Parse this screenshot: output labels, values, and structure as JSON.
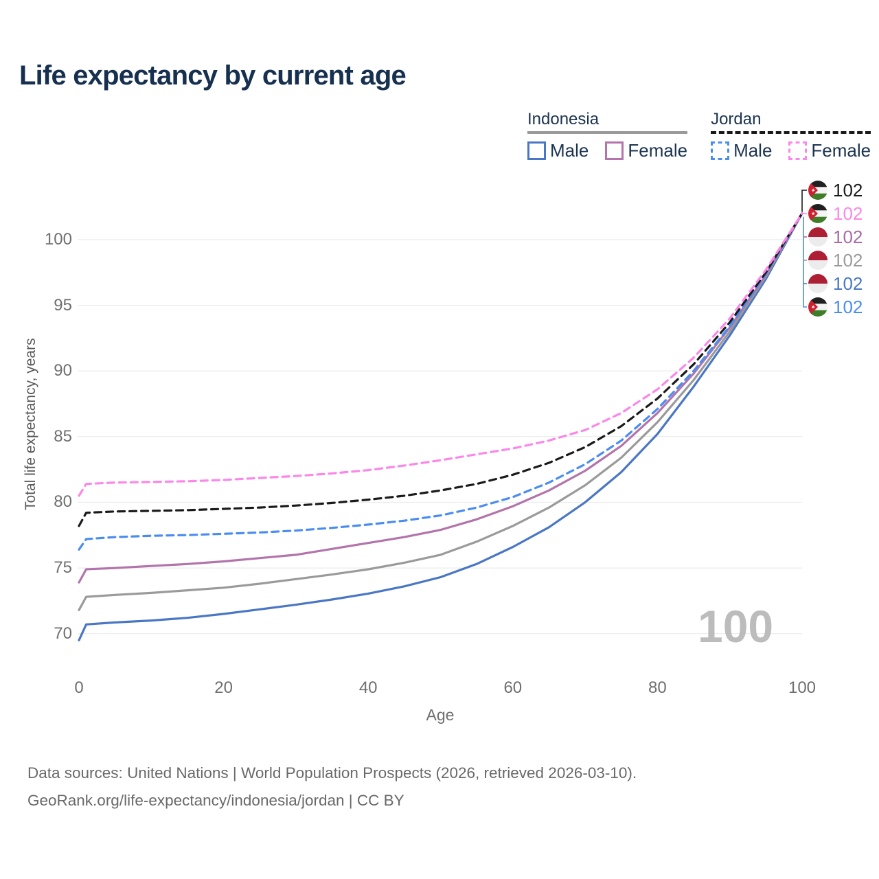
{
  "title": "Life expectancy by current age",
  "watermark": "100",
  "legend": {
    "groups": [
      {
        "country": "Indonesia",
        "line_style": "solid",
        "underline_color": "#9a9a9a",
        "items": [
          {
            "label": "Male",
            "color": "#4a77c4",
            "dashed": false
          },
          {
            "label": "Female",
            "color": "#b274ab",
            "dashed": false
          }
        ]
      },
      {
        "country": "Jordan",
        "line_style": "dashed",
        "underline_color": "#1a1a1a",
        "items": [
          {
            "label": "Male",
            "color": "#4a8df0",
            "dashed": true
          },
          {
            "label": "Female",
            "color": "#fb87e8",
            "dashed": true
          }
        ]
      }
    ]
  },
  "chart_data": {
    "type": "line",
    "title": "Life expectancy by current age",
    "xlabel": "Age",
    "ylabel": "Total life expectancy, years",
    "x_ticks": [
      0,
      20,
      40,
      60,
      80,
      100
    ],
    "y_ticks": [
      70,
      75,
      80,
      85,
      90,
      95,
      100
    ],
    "xlim": [
      0,
      100
    ],
    "ylim": [
      68.5,
      103.5
    ],
    "grid": "horizontal",
    "legend_position": "top-right",
    "x": [
      0,
      1,
      5,
      10,
      15,
      20,
      25,
      30,
      35,
      40,
      45,
      50,
      55,
      60,
      65,
      70,
      75,
      80,
      85,
      90,
      95,
      100
    ],
    "series": [
      {
        "name": "Indonesia Male",
        "country": "Indonesia",
        "sex": "Male",
        "color": "#4a77c4",
        "dashed": false,
        "values": [
          69.5,
          70.7,
          70.85,
          71.0,
          71.2,
          71.5,
          71.85,
          72.2,
          72.6,
          73.05,
          73.6,
          74.3,
          75.3,
          76.6,
          78.1,
          80.0,
          82.3,
          85.2,
          88.8,
          92.7,
          97.0,
          102
        ]
      },
      {
        "name": "Indonesia",
        "country": "Indonesia",
        "sex": "Both",
        "color": "#9a9a9a",
        "dashed": false,
        "values": [
          71.8,
          72.8,
          72.95,
          73.1,
          73.3,
          73.5,
          73.8,
          74.15,
          74.5,
          74.9,
          75.4,
          76.0,
          77.0,
          78.2,
          79.6,
          81.3,
          83.4,
          86.1,
          89.3,
          93.0,
          97.2,
          102
        ]
      },
      {
        "name": "Indonesia Female",
        "country": "Indonesia",
        "sex": "Female",
        "color": "#b274ab",
        "dashed": false,
        "values": [
          73.9,
          74.9,
          75.0,
          75.15,
          75.3,
          75.5,
          75.75,
          76.0,
          76.45,
          76.9,
          77.35,
          77.9,
          78.7,
          79.7,
          80.9,
          82.4,
          84.3,
          86.8,
          89.8,
          93.3,
          97.3,
          102
        ]
      },
      {
        "name": "Jordan Male",
        "country": "Jordan",
        "sex": "Male",
        "color": "#4a8df0",
        "dashed": true,
        "values": [
          76.4,
          77.2,
          77.35,
          77.45,
          77.5,
          77.6,
          77.7,
          77.85,
          78.05,
          78.3,
          78.6,
          79.0,
          79.6,
          80.4,
          81.5,
          82.9,
          84.7,
          87.1,
          90.0,
          93.4,
          97.4,
          102
        ]
      },
      {
        "name": "Jordan",
        "country": "Jordan",
        "sex": "Both",
        "color": "#1a1a1a",
        "dashed": true,
        "values": [
          78.2,
          79.2,
          79.3,
          79.35,
          79.4,
          79.5,
          79.6,
          79.75,
          79.95,
          80.2,
          80.5,
          80.9,
          81.4,
          82.1,
          83.0,
          84.2,
          85.8,
          87.9,
          90.5,
          93.7,
          97.5,
          102
        ]
      },
      {
        "name": "Jordan Female",
        "country": "Jordan",
        "sex": "Female",
        "color": "#fb87e8",
        "dashed": true,
        "values": [
          80.5,
          81.4,
          81.5,
          81.55,
          81.6,
          81.7,
          81.85,
          82.0,
          82.2,
          82.45,
          82.8,
          83.2,
          83.65,
          84.1,
          84.7,
          85.5,
          86.8,
          88.6,
          91.0,
          94.0,
          97.7,
          102
        ]
      }
    ]
  },
  "end_labels": [
    {
      "value": "102",
      "color": "#1a1a1a",
      "flag": "jordan",
      "series": "Jordan"
    },
    {
      "value": "102",
      "color": "#fb87e8",
      "flag": "jordan",
      "series": "Jordan Female"
    },
    {
      "value": "102",
      "color": "#a86ba3",
      "flag": "indonesia",
      "series": "Indonesia Female"
    },
    {
      "value": "102",
      "color": "#9a9a9a",
      "flag": "indonesia",
      "series": "Indonesia"
    },
    {
      "value": "102",
      "color": "#4a77c4",
      "flag": "indonesia",
      "series": "Indonesia Male"
    },
    {
      "value": "102",
      "color": "#4a8df0",
      "flag": "jordan",
      "series": "Jordan Male"
    }
  ],
  "footer": {
    "line1": "Data sources: United Nations | World Population Prospects (2026, retrieved 2026-03-10).",
    "line2": "GeoRank.org/life-expectancy/indonesia/jordan | CC BY"
  }
}
